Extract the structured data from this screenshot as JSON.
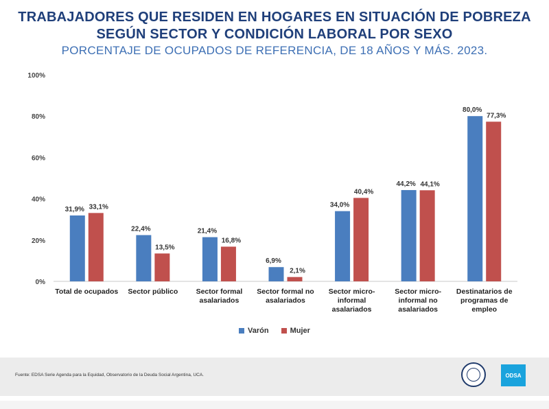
{
  "header": {
    "title_line1": "TRABAJADORES QUE RESIDEN EN HOGARES EN SITUACIÓN DE POBREZA",
    "title_line2": "SEGÚN SECTOR Y CONDICIÓN LABORAL POR SEXO",
    "subtitle": "PORCENTAJE DE OCUPADOS DE REFERENCIA, DE 18 AÑOS Y MÁS. 2023."
  },
  "chart_data": {
    "type": "bar",
    "categories": [
      [
        "Total de ocupados"
      ],
      [
        "Sector público"
      ],
      [
        "Sector formal",
        "asalariados"
      ],
      [
        "Sector formal no",
        "asalariados"
      ],
      [
        "Sector micro-",
        "informal",
        "asalariados"
      ],
      [
        "Sector micro-",
        "informal no",
        "asalariados"
      ],
      [
        "Destinatarios de",
        "programas de",
        "empleo"
      ]
    ],
    "series": [
      {
        "name": "Varón",
        "color": "#4a7ebf",
        "values": [
          31.9,
          22.4,
          21.4,
          6.9,
          34.0,
          44.2,
          80.0
        ],
        "labels": [
          "31,9%",
          "22,4%",
          "21,4%",
          "6,9%",
          "34,0%",
          "44,2%",
          "80,0%"
        ]
      },
      {
        "name": "Mujer",
        "color": "#c0504d",
        "values": [
          33.1,
          13.5,
          16.8,
          2.1,
          40.4,
          44.1,
          77.3
        ],
        "labels": [
          "33,1%",
          "13,5%",
          "16,8%",
          "2,1%",
          "40,4%",
          "44,1%",
          "77,3%"
        ]
      }
    ],
    "yticks": [
      "0%",
      "20%",
      "40%",
      "60%",
      "80%",
      "100%"
    ],
    "ylim": [
      0,
      100
    ],
    "grid": false,
    "legend": "bottom-center"
  },
  "footer": {
    "source": "Fuente: EDSA Serie Agenda para la Equidad, Observatorio de la Deuda Social Argentina, UCA.",
    "logo_text": "ODSA"
  }
}
